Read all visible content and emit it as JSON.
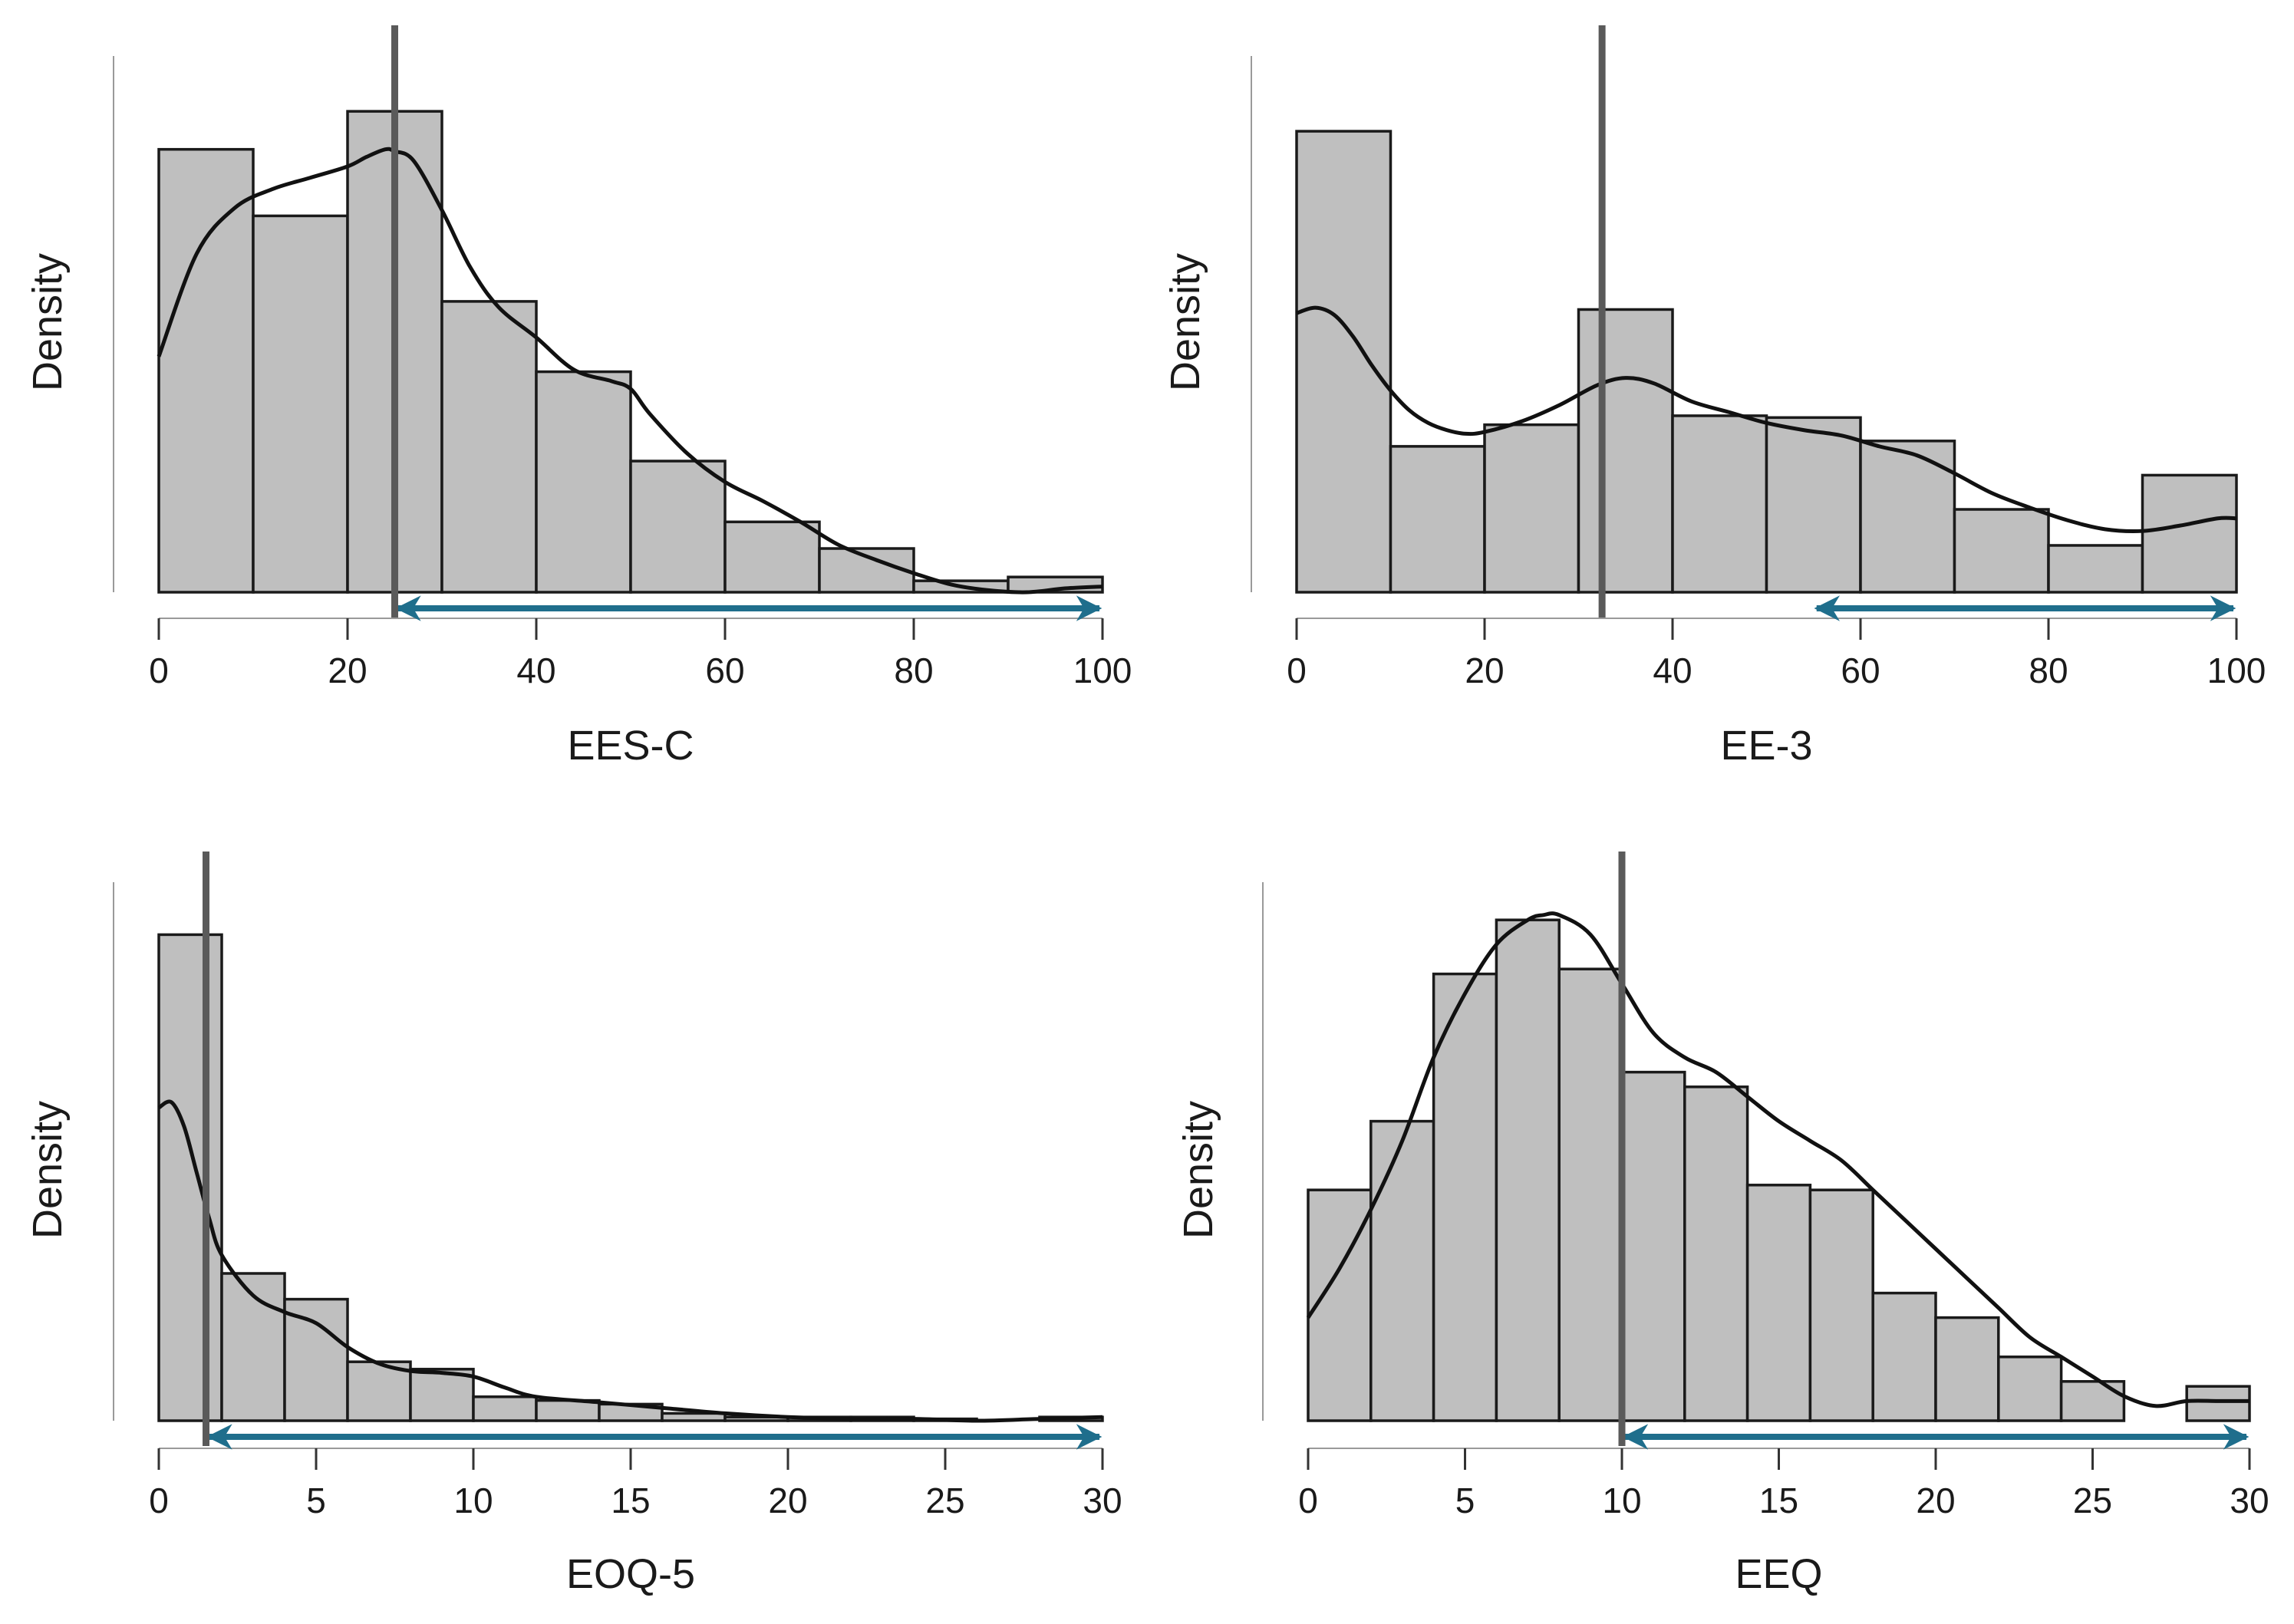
{
  "chart_data": [
    {
      "type": "histogram",
      "title": "",
      "xlabel": "EES-C",
      "ylabel": "Density",
      "xlim": [
        0,
        100
      ],
      "xticks": [
        0,
        20,
        40,
        60,
        80,
        100
      ],
      "bin_edges": [
        0,
        10,
        20,
        30,
        40,
        50,
        60,
        70,
        80,
        90,
        100
      ],
      "values": [
        0.0233,
        0.0198,
        0.0253,
        0.0153,
        0.0116,
        0.0069,
        0.0037,
        0.0023,
        0.0006,
        0.0008
      ],
      "density_curve": {
        "x": [
          0,
          4,
          8,
          12,
          16,
          20,
          22,
          24,
          25,
          27,
          30,
          33,
          36,
          40,
          44,
          48,
          50,
          52,
          56,
          60,
          64,
          68,
          72,
          76,
          80,
          84,
          88,
          92,
          96,
          100
        ],
        "y": [
          0.0124,
          0.0178,
          0.0202,
          0.0212,
          0.0218,
          0.0224,
          0.0229,
          0.0233,
          0.0232,
          0.0227,
          0.0201,
          0.0171,
          0.015,
          0.0134,
          0.0117,
          0.0111,
          0.0107,
          0.0094,
          0.0073,
          0.0058,
          0.0048,
          0.0037,
          0.0025,
          0.0017,
          0.001,
          0.0004,
          0.0001,
          0.0,
          0.0002,
          0.0003
        ]
      },
      "ylim": [
        0,
        0.027
      ],
      "reference_line": 25,
      "range_arrow": [
        25,
        100
      ]
    },
    {
      "type": "histogram",
      "title": "",
      "xlabel": "EE-3",
      "ylabel": "Density",
      "xlim": [
        0,
        100
      ],
      "xticks": [
        0,
        20,
        40,
        60,
        80,
        100
      ],
      "bin_edges": [
        0,
        10,
        20,
        30,
        40,
        50,
        60,
        70,
        80,
        90,
        100
      ],
      "values": [
        0.0256,
        0.0081,
        0.0093,
        0.0157,
        0.0098,
        0.0097,
        0.0084,
        0.0046,
        0.0026,
        0.0065
      ],
      "density_curve": {
        "x": [
          0,
          2,
          4,
          6,
          8,
          10,
          12,
          14,
          16,
          18,
          20,
          24,
          28,
          32,
          35,
          38,
          42,
          46,
          50,
          54,
          58,
          62,
          66,
          70,
          74,
          78,
          82,
          86,
          90,
          94,
          98,
          100
        ],
        "y": [
          0.0155,
          0.0158,
          0.0154,
          0.0142,
          0.0126,
          0.0112,
          0.0101,
          0.0094,
          0.009,
          0.0088,
          0.0089,
          0.0095,
          0.0104,
          0.0115,
          0.0119,
          0.0116,
          0.0106,
          0.01,
          0.0094,
          0.009,
          0.0087,
          0.0081,
          0.0076,
          0.0066,
          0.0055,
          0.0047,
          0.004,
          0.0035,
          0.0034,
          0.0037,
          0.0041,
          0.0041
        ]
      },
      "ylim": [
        0,
        0.0285
      ],
      "reference_line": 32.5,
      "range_arrow": [
        55,
        100
      ]
    },
    {
      "type": "histogram",
      "title": "",
      "xlabel": "EOQ-5",
      "ylabel": "Density",
      "xlim": [
        0,
        30
      ],
      "xticks": [
        0,
        5,
        10,
        15,
        20,
        25,
        30
      ],
      "bin_edges": [
        0,
        2,
        4,
        6,
        8,
        10,
        12,
        14,
        16,
        18,
        20,
        22,
        24,
        26,
        28,
        30
      ],
      "values": [
        0.264,
        0.08,
        0.066,
        0.032,
        0.028,
        0.013,
        0.011,
        0.009,
        0.004,
        0.002,
        0.002,
        0.002,
        0.001,
        0.0,
        0.002
      ],
      "density_curve": {
        "x": [
          0,
          0.4,
          0.8,
          1.2,
          1.6,
          2,
          3,
          4,
          5,
          6,
          7,
          8,
          9,
          10,
          11,
          12,
          14,
          16,
          18,
          20,
          22,
          24,
          26,
          28,
          30
        ],
        "y": [
          0.17,
          0.173,
          0.16,
          0.135,
          0.11,
          0.09,
          0.068,
          0.059,
          0.053,
          0.04,
          0.031,
          0.027,
          0.026,
          0.024,
          0.018,
          0.013,
          0.01,
          0.007,
          0.004,
          0.002,
          0.001,
          0.001,
          0.0,
          0.001,
          0.002
        ]
      },
      "ylim": [
        0,
        0.28
      ],
      "reference_line": 1.5,
      "range_arrow": [
        1.5,
        30
      ]
    },
    {
      "type": "histogram",
      "title": "",
      "xlabel": "EEQ",
      "ylabel": "Density",
      "xlim": [
        0,
        30
      ],
      "xticks": [
        0,
        5,
        10,
        15,
        20,
        25,
        30
      ],
      "bin_edges": [
        0,
        2,
        4,
        6,
        8,
        10,
        12,
        14,
        16,
        18,
        20,
        22,
        24,
        26,
        28,
        30
      ],
      "values": [
        0.047,
        0.061,
        0.091,
        0.102,
        0.092,
        0.071,
        0.068,
        0.048,
        0.047,
        0.026,
        0.021,
        0.013,
        0.008,
        0.0,
        0.007
      ],
      "density_curve": {
        "x": [
          0,
          1,
          2,
          3,
          4,
          5,
          6,
          7,
          7.5,
          8,
          9,
          10,
          11,
          12,
          13,
          14,
          15,
          16,
          17,
          18,
          19,
          20,
          21,
          22,
          23,
          24,
          25,
          26,
          27,
          28,
          29,
          30
        ],
        "y": [
          0.021,
          0.031,
          0.043,
          0.057,
          0.074,
          0.087,
          0.097,
          0.102,
          0.103,
          0.103,
          0.099,
          0.089,
          0.079,
          0.074,
          0.071,
          0.066,
          0.061,
          0.057,
          0.053,
          0.047,
          0.041,
          0.035,
          0.029,
          0.023,
          0.017,
          0.013,
          0.009,
          0.005,
          0.003,
          0.004,
          0.004,
          0.004
        ]
      },
      "ylim": [
        0,
        0.105
      ],
      "reference_line": 10,
      "range_arrow": [
        10,
        30
      ]
    }
  ],
  "colors": {
    "bar_fill": "#bfbfbf",
    "bar_stroke": "#1a1a1a",
    "curve": "#111111",
    "reference_line": "#5a5a5a",
    "arrow": "#1f6e8c",
    "axis": "#333333"
  }
}
